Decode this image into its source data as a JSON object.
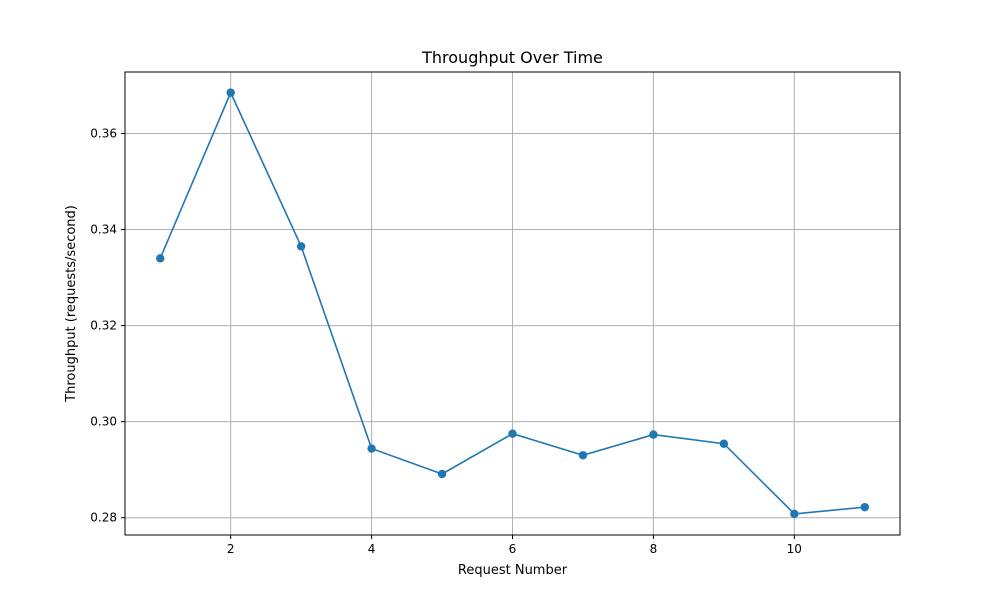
{
  "chart_data": {
    "type": "line",
    "title": "Throughput Over Time",
    "xlabel": "Request Number",
    "ylabel": "Throughput (requests/second)",
    "x": [
      1,
      2,
      3,
      4,
      5,
      6,
      7,
      8,
      9,
      10,
      11
    ],
    "series": [
      {
        "values": [
          0.334,
          0.3685,
          0.3365,
          0.2944,
          0.2891,
          0.2975,
          0.293,
          0.2973,
          0.2954,
          0.2808,
          0.2822
        ]
      }
    ],
    "xlim": [
      0.5,
      11.5
    ],
    "ylim": [
      0.2764,
      0.3728
    ],
    "xticks": [
      2,
      4,
      6,
      8,
      10
    ],
    "yticks": [
      0.28,
      0.3,
      0.32,
      0.34,
      0.36
    ],
    "xtick_labels": [
      "2",
      "4",
      "6",
      "8",
      "10"
    ],
    "ytick_labels": [
      "0.28",
      "0.30",
      "0.32",
      "0.34",
      "0.36"
    ],
    "grid": true,
    "markers": true,
    "line_color": "#1f77b4",
    "grid_color": "#b0b0b0"
  }
}
